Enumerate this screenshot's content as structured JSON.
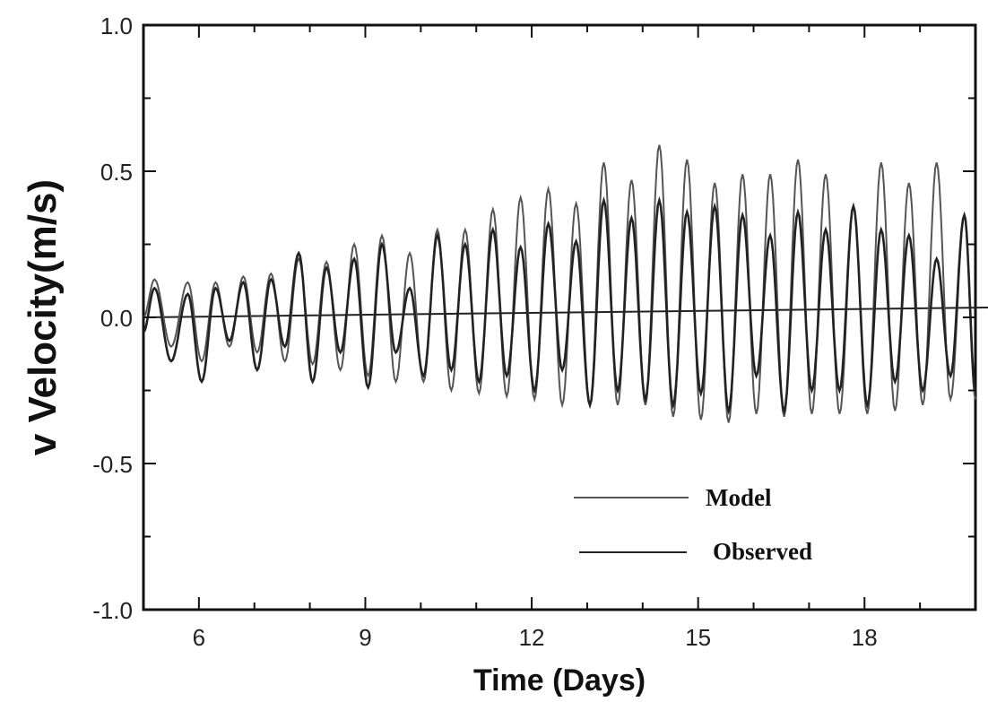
{
  "chart_data": {
    "type": "line",
    "title": "",
    "xlabel": "Time (Days)",
    "ylabel": "v Velocity(m/s)",
    "xlim": [
      5,
      20
    ],
    "ylim": [
      -1.0,
      1.0
    ],
    "x_ticks": [
      6,
      9,
      12,
      15,
      18
    ],
    "y_ticks": [
      1.0,
      0.5,
      0.0,
      -0.5,
      -1.0
    ],
    "y_tick_labels": [
      "1.0",
      "0.5",
      "0.0",
      "-0.5",
      "-1.0"
    ],
    "grid": false,
    "legend_position": "bottom-right",
    "zero_line": true,
    "series": [
      {
        "name": "Model",
        "color": "#555555",
        "x": [
          5.0,
          5.2,
          5.5,
          5.8,
          6.05,
          6.3,
          6.55,
          6.8,
          7.05,
          7.3,
          7.55,
          7.8,
          8.05,
          8.3,
          8.55,
          8.8,
          9.05,
          9.3,
          9.55,
          9.8,
          10.05,
          10.3,
          10.55,
          10.8,
          11.05,
          11.3,
          11.55,
          11.8,
          12.05,
          12.3,
          12.55,
          12.8,
          13.05,
          13.3,
          13.55,
          13.8,
          14.05,
          14.3,
          14.55,
          14.8,
          15.05,
          15.3,
          15.55,
          15.8,
          16.05,
          16.3,
          16.55,
          16.8,
          17.05,
          17.3,
          17.55,
          17.8,
          18.05,
          18.3,
          18.55,
          18.8,
          19.05,
          19.3,
          19.55,
          19.8,
          20.0
        ],
        "y": [
          0.0,
          0.13,
          -0.1,
          0.12,
          -0.15,
          0.12,
          -0.1,
          0.14,
          -0.12,
          0.15,
          -0.15,
          0.2,
          -0.16,
          0.19,
          -0.18,
          0.25,
          -0.2,
          0.28,
          -0.22,
          0.22,
          -0.22,
          0.3,
          -0.25,
          0.3,
          -0.26,
          0.37,
          -0.27,
          0.41,
          -0.28,
          0.44,
          -0.3,
          0.39,
          -0.3,
          0.53,
          -0.3,
          0.47,
          -0.3,
          0.59,
          -0.34,
          0.54,
          -0.35,
          0.46,
          -0.36,
          0.49,
          -0.33,
          0.49,
          -0.34,
          0.54,
          -0.33,
          0.49,
          -0.33,
          0.38,
          -0.33,
          0.53,
          -0.32,
          0.46,
          -0.3,
          0.53,
          -0.28,
          0.35,
          -0.28
        ]
      },
      {
        "name": "Observed",
        "color": "#222222",
        "x": [
          5.0,
          5.2,
          5.5,
          5.8,
          6.05,
          6.3,
          6.55,
          6.8,
          7.05,
          7.3,
          7.55,
          7.8,
          8.05,
          8.3,
          8.55,
          8.8,
          9.05,
          9.3,
          9.55,
          9.8,
          10.05,
          10.3,
          10.55,
          10.8,
          11.05,
          11.3,
          11.55,
          11.8,
          12.05,
          12.3,
          12.55,
          12.8,
          13.05,
          13.3,
          13.55,
          13.8,
          14.05,
          14.3,
          14.55,
          14.8,
          15.05,
          15.3,
          15.55,
          15.8,
          16.05,
          16.3,
          16.55,
          16.8,
          17.05,
          17.3,
          17.55,
          17.8,
          18.05,
          18.3,
          18.55,
          18.8,
          19.05,
          19.3,
          19.55,
          19.8,
          20.0
        ],
        "y": [
          -0.05,
          0.1,
          -0.15,
          0.08,
          -0.22,
          0.1,
          -0.08,
          0.12,
          -0.18,
          0.13,
          -0.1,
          0.22,
          -0.22,
          0.17,
          -0.12,
          0.2,
          -0.24,
          0.25,
          -0.12,
          0.1,
          -0.2,
          0.28,
          -0.18,
          0.25,
          -0.22,
          0.3,
          -0.2,
          0.24,
          -0.25,
          0.32,
          -0.18,
          0.26,
          -0.3,
          0.4,
          -0.25,
          0.34,
          -0.28,
          0.4,
          -0.3,
          0.36,
          -0.26,
          0.38,
          -0.32,
          0.35,
          -0.2,
          0.28,
          -0.32,
          0.36,
          -0.25,
          0.3,
          -0.25,
          0.38,
          -0.3,
          0.3,
          -0.22,
          0.28,
          -0.25,
          0.2,
          -0.2,
          0.35,
          -0.25
        ]
      }
    ]
  }
}
